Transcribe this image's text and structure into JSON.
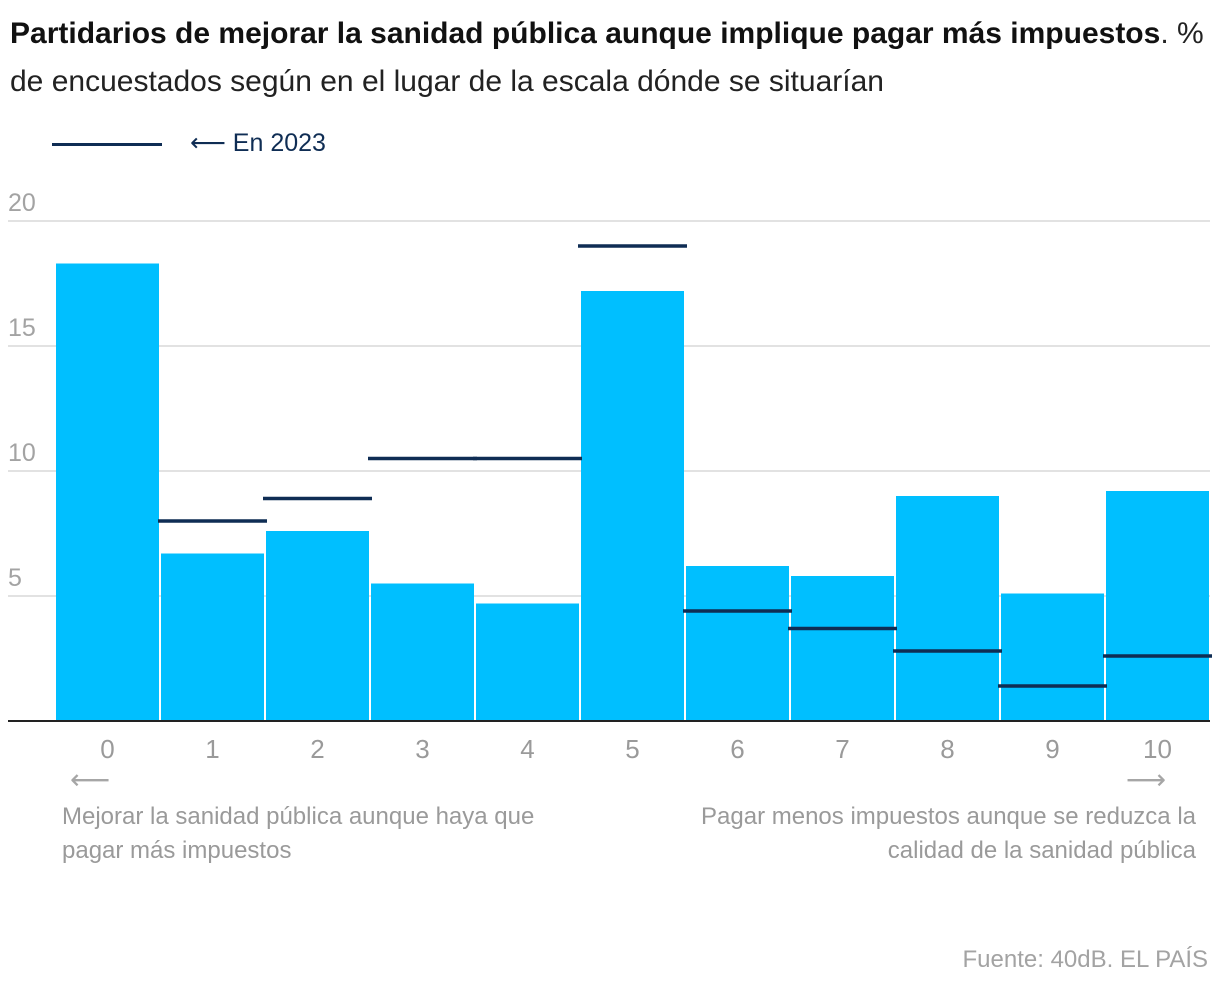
{
  "title": {
    "bold": "Partidarios de mejorar la sanidad pública aunque implique pagar más impuestos",
    "rest": ". % de encuestados según en el lugar de la escala dónde se situarían"
  },
  "legend": {
    "label": "En 2023",
    "arrow": "⟵"
  },
  "colors": {
    "bar": "#00bfff",
    "marker": "#0f2d54",
    "grid": "#d9d9d9",
    "axis_text": "#9a9a9a"
  },
  "chart_data": {
    "type": "bar",
    "categories": [
      "0",
      "1",
      "2",
      "3",
      "4",
      "5",
      "6",
      "7",
      "8",
      "9",
      "10"
    ],
    "series": [
      {
        "values": [
          18.3,
          6.7,
          7.6,
          5.5,
          4.7,
          17.2,
          6.2,
          5.8,
          9.0,
          5.1,
          9.2
        ]
      },
      {
        "name": "En 2023",
        "values": [
          null,
          8.0,
          8.9,
          10.5,
          10.5,
          19.0,
          4.4,
          3.7,
          2.8,
          1.4,
          2.6
        ]
      }
    ],
    "y_ticks": [
      5,
      10,
      15,
      20
    ],
    "ylim": [
      0,
      20
    ],
    "grid": true
  },
  "annotations": {
    "left": "Mejorar la sanidad pública aunque haya que pagar más impuestos",
    "right": "Pagar menos impuestos aunque se reduzca la calidad de la sanidad pública",
    "left_arrow": "⟵",
    "right_arrow": "⟶"
  },
  "source": "Fuente: 40dB. EL PAÍS"
}
